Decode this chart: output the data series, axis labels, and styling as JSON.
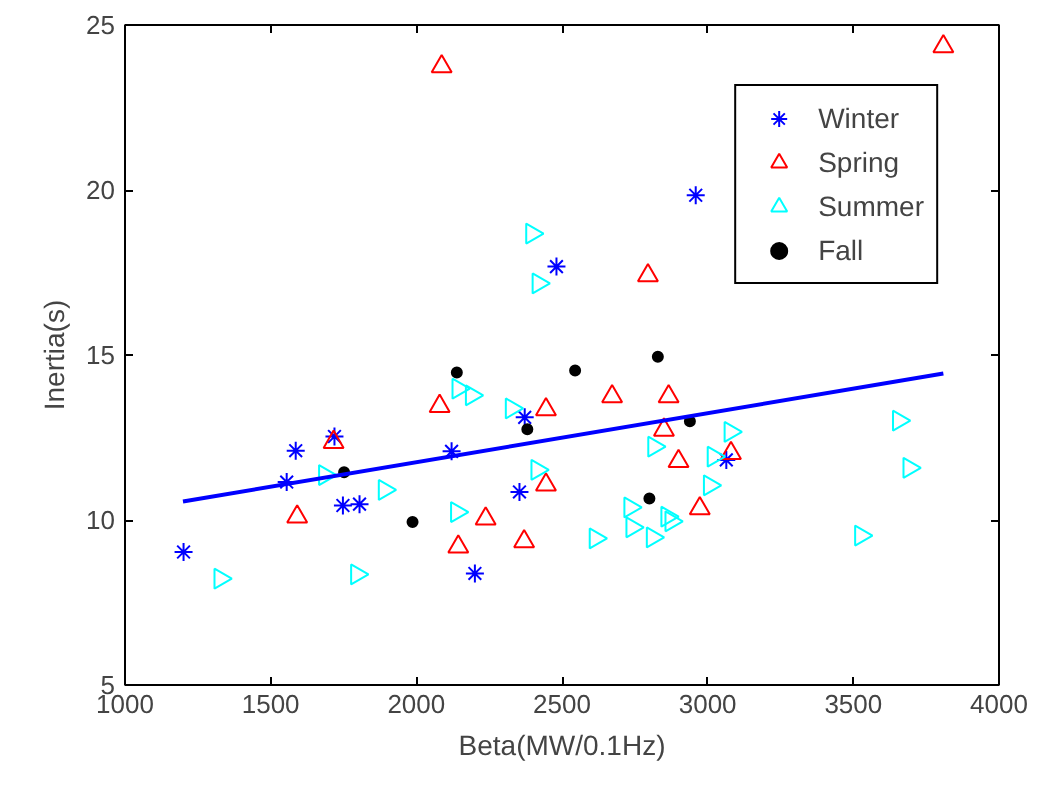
{
  "chart_data": {
    "type": "scatter",
    "xlabel": "Beta(MW/0.1Hz)",
    "ylabel": "Inertia(s)",
    "xlim": [
      1000,
      4000
    ],
    "ylim": [
      5,
      25
    ],
    "xticks": [
      1000,
      1500,
      2000,
      2500,
      3000,
      3500,
      4000
    ],
    "yticks": [
      5,
      10,
      15,
      20,
      25
    ],
    "grid": false,
    "legend": "top right",
    "series": [
      {
        "name": "Winter",
        "color": "#0000ff",
        "marker": "cross",
        "x": [
          1201,
          1586,
          1555,
          1719,
          1748,
          1805,
          2121,
          2201,
          2354,
          2372,
          2481,
          2959,
          3064
        ],
        "values": [
          9.03,
          12.1,
          11.15,
          12.53,
          10.44,
          10.48,
          12.08,
          8.38,
          10.85,
          13.11,
          17.68,
          19.84,
          11.82
        ]
      },
      {
        "name": "Spring",
        "color": "#ff0000",
        "marker": "triangle",
        "x": [
          2087,
          3809,
          2795,
          1716,
          1591,
          2080,
          2445,
          2445,
          2238,
          2144,
          2370,
          2672,
          2866,
          2850,
          2900,
          3080,
          2973
        ],
        "values": [
          23.74,
          24.35,
          17.41,
          12.36,
          10.1,
          13.45,
          13.35,
          11.07,
          10.04,
          9.19,
          9.35,
          13.74,
          13.74,
          12.73,
          11.78,
          12.02,
          10.35
        ]
      },
      {
        "name": "Summer",
        "color": "#00ffff",
        "marker": "triangle_right",
        "x": [
          2397,
          2419,
          2144,
          2190,
          2327,
          2415,
          1686,
          1891,
          2139,
          1327,
          1796,
          2615,
          2816,
          3078,
          3020,
          3007,
          2734,
          2741,
          2811,
          2861,
          2875,
          3656,
          3692,
          3526
        ],
        "values": [
          18.68,
          17.17,
          13.98,
          13.78,
          13.38,
          11.52,
          11.36,
          10.91,
          10.24,
          8.22,
          8.35,
          9.44,
          12.22,
          12.67,
          11.92,
          11.05,
          10.38,
          9.78,
          9.47,
          10.1,
          9.96,
          13.01,
          11.58,
          9.53
        ]
      },
      {
        "name": "Fall",
        "color": "#000000",
        "marker": "circle",
        "x": [
          2139,
          2545,
          2381,
          1752,
          1987,
          2829,
          2939,
          2800
        ],
        "values": [
          14.47,
          14.53,
          12.75,
          11.45,
          9.94,
          14.95,
          12.99,
          10.65
        ]
      },
      {
        "type": "line",
        "color": "#0000ff",
        "x": [
          1199,
          3809
        ],
        "values": [
          10.56,
          14.44
        ]
      }
    ]
  }
}
